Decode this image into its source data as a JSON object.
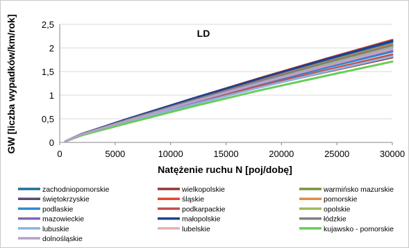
{
  "chart_data": {
    "type": "line",
    "annotation": "LD",
    "xlabel": "Natężenie ruchu N [poj/dobę]",
    "ylabel": "GW [liczba wypadków/km/rok]",
    "xlim": [
      0,
      30000
    ],
    "ylim": [
      0,
      2.5
    ],
    "x_ticks": [
      "0",
      "5000",
      "10000",
      "15000",
      "20000",
      "25000",
      "30000"
    ],
    "y_ticks": [
      "0",
      "0,5",
      "1",
      "1,5",
      "2",
      "2,5"
    ],
    "grid": "horizontal",
    "legend_position": "bottom",
    "x": [
      500,
      2000,
      6000,
      12000,
      18000,
      24000,
      30000
    ],
    "series": [
      {
        "name": "zachodniopomorskie",
        "color": "#1f6f9f",
        "values": [
          0.02,
          0.18,
          0.48,
          0.92,
          1.33,
          1.73,
          2.12
        ]
      },
      {
        "name": "wielkopolskie",
        "color": "#943634",
        "values": [
          0.02,
          0.16,
          0.43,
          0.81,
          1.17,
          1.49,
          1.8
        ]
      },
      {
        "name": "warmińsko mazurskie",
        "color": "#77933c",
        "values": [
          0.02,
          0.18,
          0.47,
          0.9,
          1.31,
          1.7,
          2.08
        ]
      },
      {
        "name": "świętokrzyskie",
        "color": "#5f497a",
        "values": [
          0.02,
          0.17,
          0.45,
          0.86,
          1.26,
          1.64,
          2.01
        ]
      },
      {
        "name": "śląskie",
        "color": "#e6462b",
        "values": [
          0.02,
          0.18,
          0.48,
          0.93,
          1.36,
          1.77,
          2.17
        ]
      },
      {
        "name": "pomorskie",
        "color": "#e38b3f",
        "values": [
          0.02,
          0.18,
          0.47,
          0.9,
          1.31,
          1.7,
          2.08
        ]
      },
      {
        "name": "podlaskie",
        "color": "#2e8bd0",
        "values": [
          0.02,
          0.17,
          0.44,
          0.84,
          1.22,
          1.58,
          1.92
        ]
      },
      {
        "name": "podkarpackie",
        "color": "#c0504d",
        "values": [
          0.02,
          0.16,
          0.43,
          0.82,
          1.19,
          1.53,
          1.86
        ]
      },
      {
        "name": "opolskie",
        "color": "#9bbb59",
        "values": [
          0.02,
          0.17,
          0.46,
          0.88,
          1.28,
          1.67,
          2.04
        ]
      },
      {
        "name": "mazowieckie",
        "color": "#7f64b8",
        "values": [
          0.02,
          0.17,
          0.44,
          0.85,
          1.24,
          1.61,
          1.96
        ]
      },
      {
        "name": "małopolskie",
        "color": "#1f3f8f",
        "values": [
          0.02,
          0.18,
          0.49,
          0.93,
          1.35,
          1.76,
          2.15
        ]
      },
      {
        "name": "łódzkie",
        "color": "#7f7f7f",
        "values": [
          0.02,
          0.17,
          0.47,
          0.89,
          1.3,
          1.69,
          2.06
        ]
      },
      {
        "name": "lubuskie",
        "color": "#8db4e2",
        "values": [
          0.02,
          0.16,
          0.42,
          0.8,
          1.16,
          1.5,
          1.82
        ]
      },
      {
        "name": "lubelskie",
        "color": "#e6b0b0",
        "values": [
          0.02,
          0.17,
          0.45,
          0.86,
          1.25,
          1.62,
          1.98
        ]
      },
      {
        "name": "kujawsko - pomorskie",
        "color": "#6acc5a",
        "values": [
          0.02,
          0.15,
          0.4,
          0.76,
          1.1,
          1.41,
          1.71
        ]
      },
      {
        "name": "dolnośląskie",
        "color": "#b3a2c7",
        "values": [
          0.02,
          0.17,
          0.45,
          0.86,
          1.26,
          1.63,
          2.0
        ]
      }
    ]
  }
}
